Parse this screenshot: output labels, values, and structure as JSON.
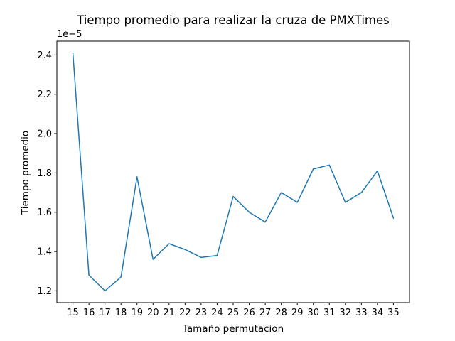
{
  "chart_data": {
    "type": "line",
    "title": "Tiempo promedio para realizar la cruza de PMXTimes",
    "xlabel": "Tamaño permutacion",
    "ylabel": "Tiempo promedio",
    "y_offset_label": "1e−5",
    "x": [
      15,
      16,
      17,
      18,
      19,
      20,
      21,
      22,
      23,
      24,
      25,
      26,
      27,
      28,
      29,
      30,
      31,
      32,
      33,
      34,
      35
    ],
    "series": [
      {
        "values": [
          2.41,
          1.28,
          1.2,
          1.27,
          1.78,
          1.36,
          1.44,
          1.41,
          1.37,
          1.38,
          1.68,
          1.6,
          1.55,
          1.7,
          1.65,
          1.82,
          1.84,
          1.65,
          1.7,
          1.81,
          1.57
        ],
        "color": "#1f77b4"
      }
    ],
    "x_ticks": [
      "15",
      "16",
      "17",
      "18",
      "19",
      "20",
      "21",
      "22",
      "23",
      "24",
      "25",
      "26",
      "27",
      "28",
      "29",
      "30",
      "31",
      "32",
      "33",
      "34",
      "35"
    ],
    "y_ticks": [
      1.2,
      1.4,
      1.6,
      1.8,
      2.0,
      2.2,
      2.4
    ],
    "y_tick_labels": [
      "1.2",
      "1.4",
      "1.6",
      "1.8",
      "2.0",
      "2.2",
      "2.4"
    ],
    "xlim": [
      14,
      36
    ],
    "ylim": [
      1.14,
      2.47
    ],
    "grid": false,
    "legend": "none"
  }
}
